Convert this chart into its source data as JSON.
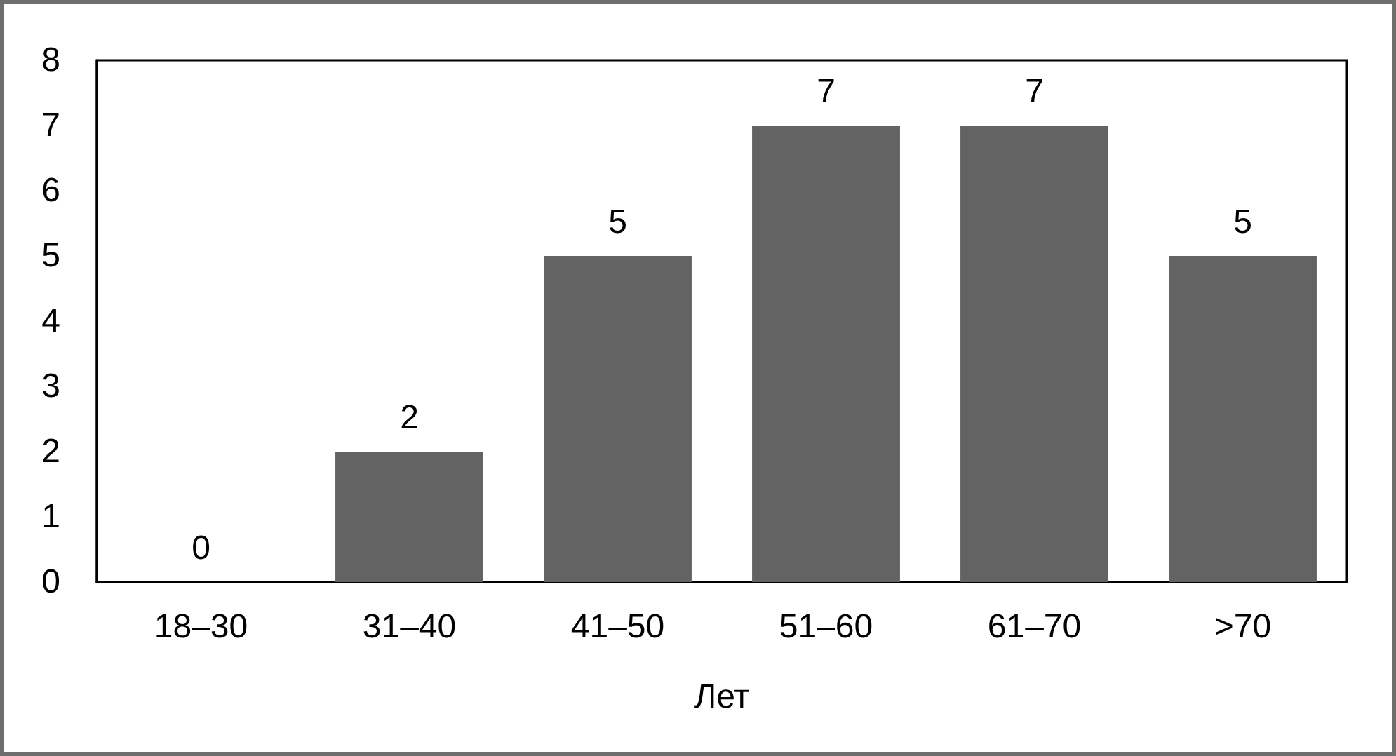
{
  "chart_data": {
    "type": "bar",
    "xlabel": "Лет",
    "categories": [
      "18–30",
      "31–40",
      "41–50",
      "51–60",
      "61–70",
      ">70"
    ],
    "values": [
      0,
      2,
      5,
      7,
      7,
      5
    ],
    "color": "#636363",
    "ylim": [
      0,
      8
    ],
    "yticks": [
      0,
      1,
      2,
      3,
      4,
      5,
      6,
      7,
      8
    ],
    "data_labels": true
  }
}
